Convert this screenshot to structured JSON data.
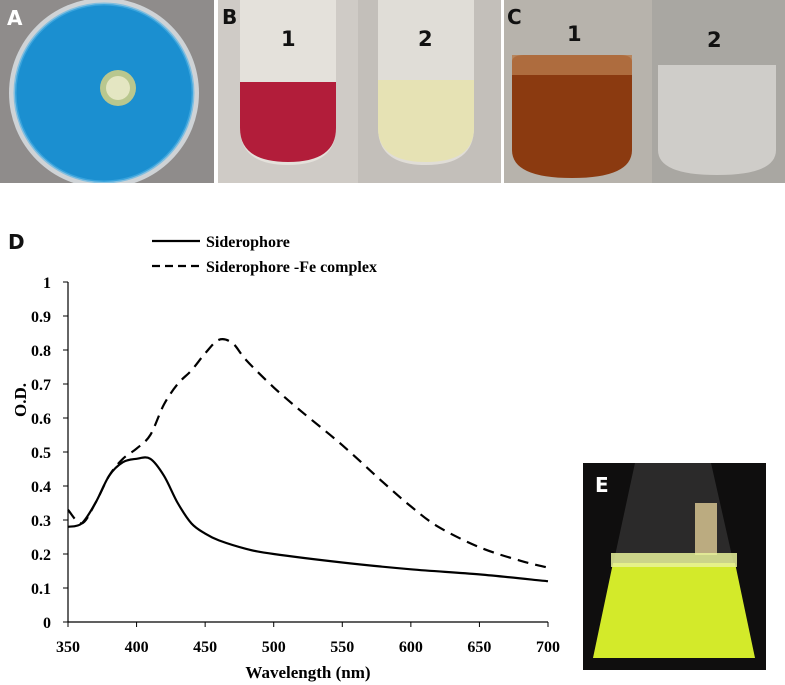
{
  "panels": {
    "a": {
      "letter": "A"
    },
    "b": {
      "letter": "B",
      "tube1": "1",
      "tube2": "2"
    },
    "c": {
      "letter": "C",
      "tube1": "1",
      "tube2": "2"
    },
    "d": {
      "letter": "D"
    },
    "e": {
      "letter": "E"
    }
  },
  "colors": {
    "agar_blue": "#1b8fd0",
    "colony": "#c9d3a0",
    "tube_red": "#b21d3a",
    "tube_pale": "#e6e2b4",
    "tube_amber": "#8b3a10",
    "flask_yellow": "#d3ea2a"
  },
  "chart_data": {
    "type": "line",
    "title": "",
    "xlabel": "Wavelength (nm)",
    "ylabel": "O.D.",
    "xlim": [
      350,
      700
    ],
    "ylim": [
      0,
      1
    ],
    "xticks": [
      "350",
      "400",
      "450",
      "500",
      "550",
      "600",
      "650",
      "700"
    ],
    "yticks": [
      "0",
      "0.1",
      "0.2",
      "0.3",
      "0.4",
      "0.5",
      "0.6",
      "0.7",
      "0.8",
      "0.9",
      "1"
    ],
    "grid": false,
    "legend_position": "top-left",
    "series": [
      {
        "name": "Siderophore",
        "style": "solid",
        "x": [
          350,
          360,
          370,
          380,
          390,
          400,
          410,
          420,
          430,
          440,
          450,
          460,
          480,
          500,
          550,
          600,
          650,
          700
        ],
        "y": [
          0.28,
          0.29,
          0.35,
          0.43,
          0.47,
          0.48,
          0.48,
          0.43,
          0.35,
          0.29,
          0.26,
          0.24,
          0.215,
          0.2,
          0.175,
          0.155,
          0.14,
          0.12
        ]
      },
      {
        "name": "Siderophore -Fe complex",
        "style": "dashed",
        "x": [
          350,
          360,
          370,
          380,
          390,
          400,
          410,
          420,
          430,
          440,
          450,
          460,
          470,
          480,
          500,
          520,
          550,
          580,
          600,
          620,
          650,
          680,
          700
        ],
        "y": [
          0.33,
          0.29,
          0.35,
          0.43,
          0.48,
          0.51,
          0.55,
          0.64,
          0.7,
          0.74,
          0.79,
          0.83,
          0.82,
          0.77,
          0.69,
          0.62,
          0.52,
          0.41,
          0.34,
          0.28,
          0.22,
          0.18,
          0.16
        ]
      }
    ]
  }
}
